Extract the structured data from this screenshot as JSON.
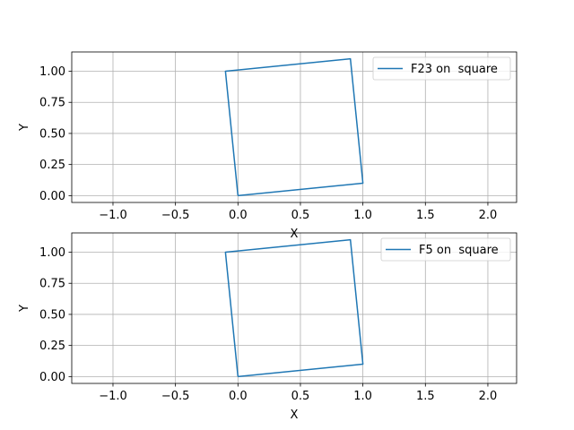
{
  "chart_data": [
    {
      "type": "line",
      "title": "",
      "xlabel": "X",
      "ylabel": "Y",
      "xlim": [
        -1.33,
        2.23
      ],
      "ylim": [
        -0.055,
        1.155
      ],
      "xticks": [
        -1.0,
        -0.5,
        0.0,
        0.5,
        1.0,
        1.5,
        2.0
      ],
      "xtick_labels": [
        "−1.0",
        "−0.5",
        "0.0",
        "0.5",
        "1.0",
        "1.5",
        "2.0"
      ],
      "yticks": [
        0.0,
        0.25,
        0.5,
        0.75,
        1.0
      ],
      "ytick_labels": [
        "0.00",
        "0.25",
        "0.50",
        "0.75",
        "1.00"
      ],
      "grid": true,
      "legend_position": "top-right",
      "series": [
        {
          "name": "F23 on  square",
          "color": "#1f77b4",
          "x": [
            0.0,
            1.0,
            0.9,
            -0.1,
            0.0
          ],
          "y": [
            0.0,
            0.1,
            1.1,
            1.0,
            0.0
          ]
        }
      ]
    },
    {
      "type": "line",
      "title": "",
      "xlabel": "X",
      "ylabel": "Y",
      "xlim": [
        -1.33,
        2.23
      ],
      "ylim": [
        -0.055,
        1.155
      ],
      "xticks": [
        -1.0,
        -0.5,
        0.0,
        0.5,
        1.0,
        1.5,
        2.0
      ],
      "xtick_labels": [
        "−1.0",
        "−0.5",
        "0.0",
        "0.5",
        "1.0",
        "1.5",
        "2.0"
      ],
      "yticks": [
        0.0,
        0.25,
        0.5,
        0.75,
        1.0
      ],
      "ytick_labels": [
        "0.00",
        "0.25",
        "0.50",
        "0.75",
        "1.00"
      ],
      "grid": true,
      "legend_position": "top-right",
      "series": [
        {
          "name": "F5 on  square",
          "color": "#1f77b4",
          "x": [
            0.0,
            1.0,
            0.9,
            -0.1,
            0.0
          ],
          "y": [
            0.0,
            0.1,
            1.1,
            1.0,
            0.0
          ]
        }
      ]
    }
  ]
}
